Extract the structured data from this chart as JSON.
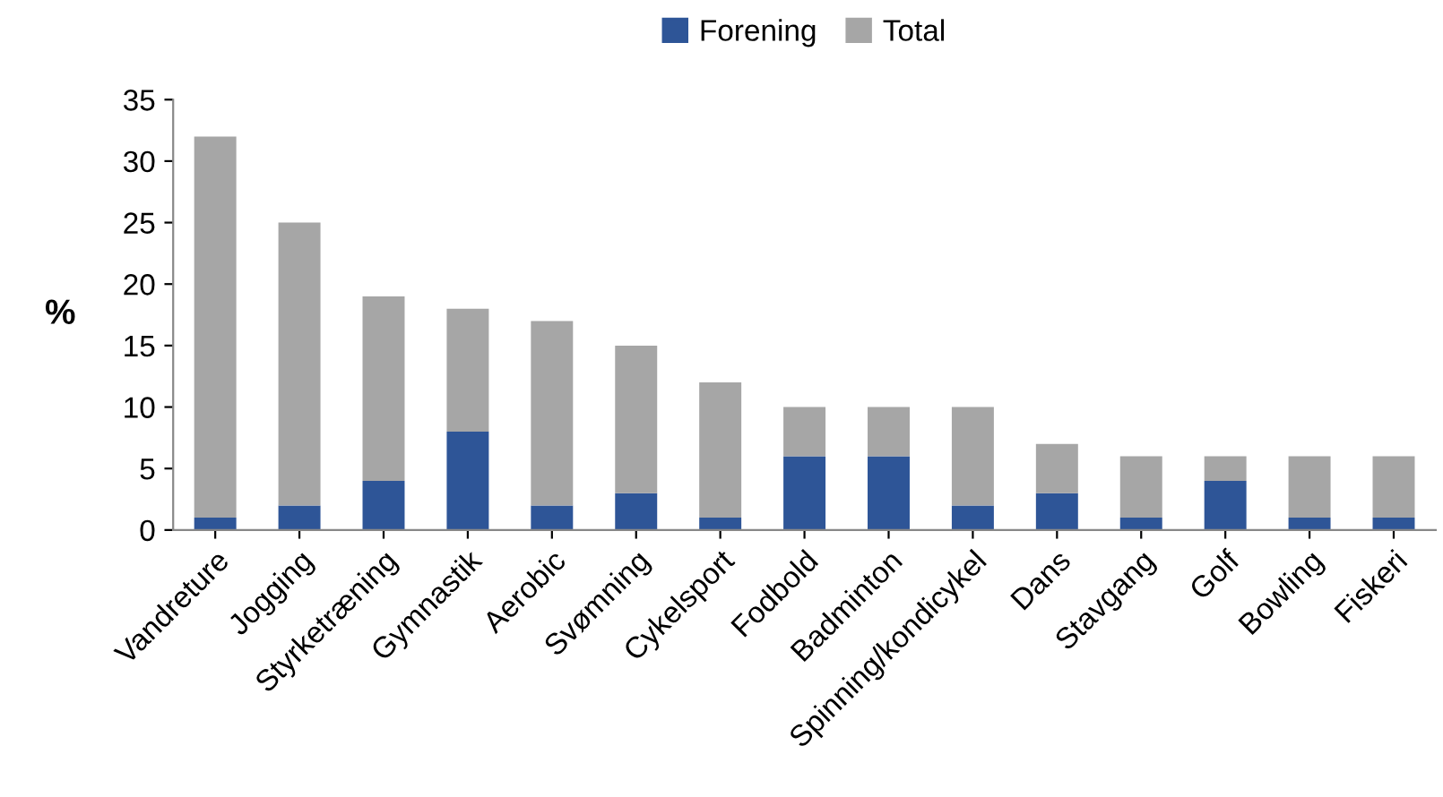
{
  "chart_data": {
    "type": "bar",
    "stacked": true,
    "ylabel": "%",
    "categories": [
      "Vandreture",
      "Jogging",
      "Styrketræning",
      "Gymnastik",
      "Aerobic",
      "Svømning",
      "Cykelsport",
      "Fodbold",
      "Badminton",
      "Spinning/kondicykel",
      "Dans",
      "Stavgang",
      "Golf",
      "Bowling",
      "Fiskeri"
    ],
    "series": [
      {
        "name": "Forening",
        "color": "#2e5597",
        "values": [
          1,
          2,
          4,
          8,
          2,
          3,
          1,
          6,
          6,
          2,
          3,
          1,
          4,
          1,
          1
        ]
      },
      {
        "name": "Total",
        "color": "#a6a6a6",
        "values": [
          31,
          23,
          15,
          10,
          15,
          12,
          11,
          4,
          4,
          8,
          4,
          5,
          2,
          5,
          5
        ]
      }
    ],
    "ylim": [
      0,
      35
    ],
    "yticks": [
      0,
      5,
      10,
      15,
      20,
      25,
      30,
      35
    ],
    "grid": false,
    "legend": "top"
  }
}
